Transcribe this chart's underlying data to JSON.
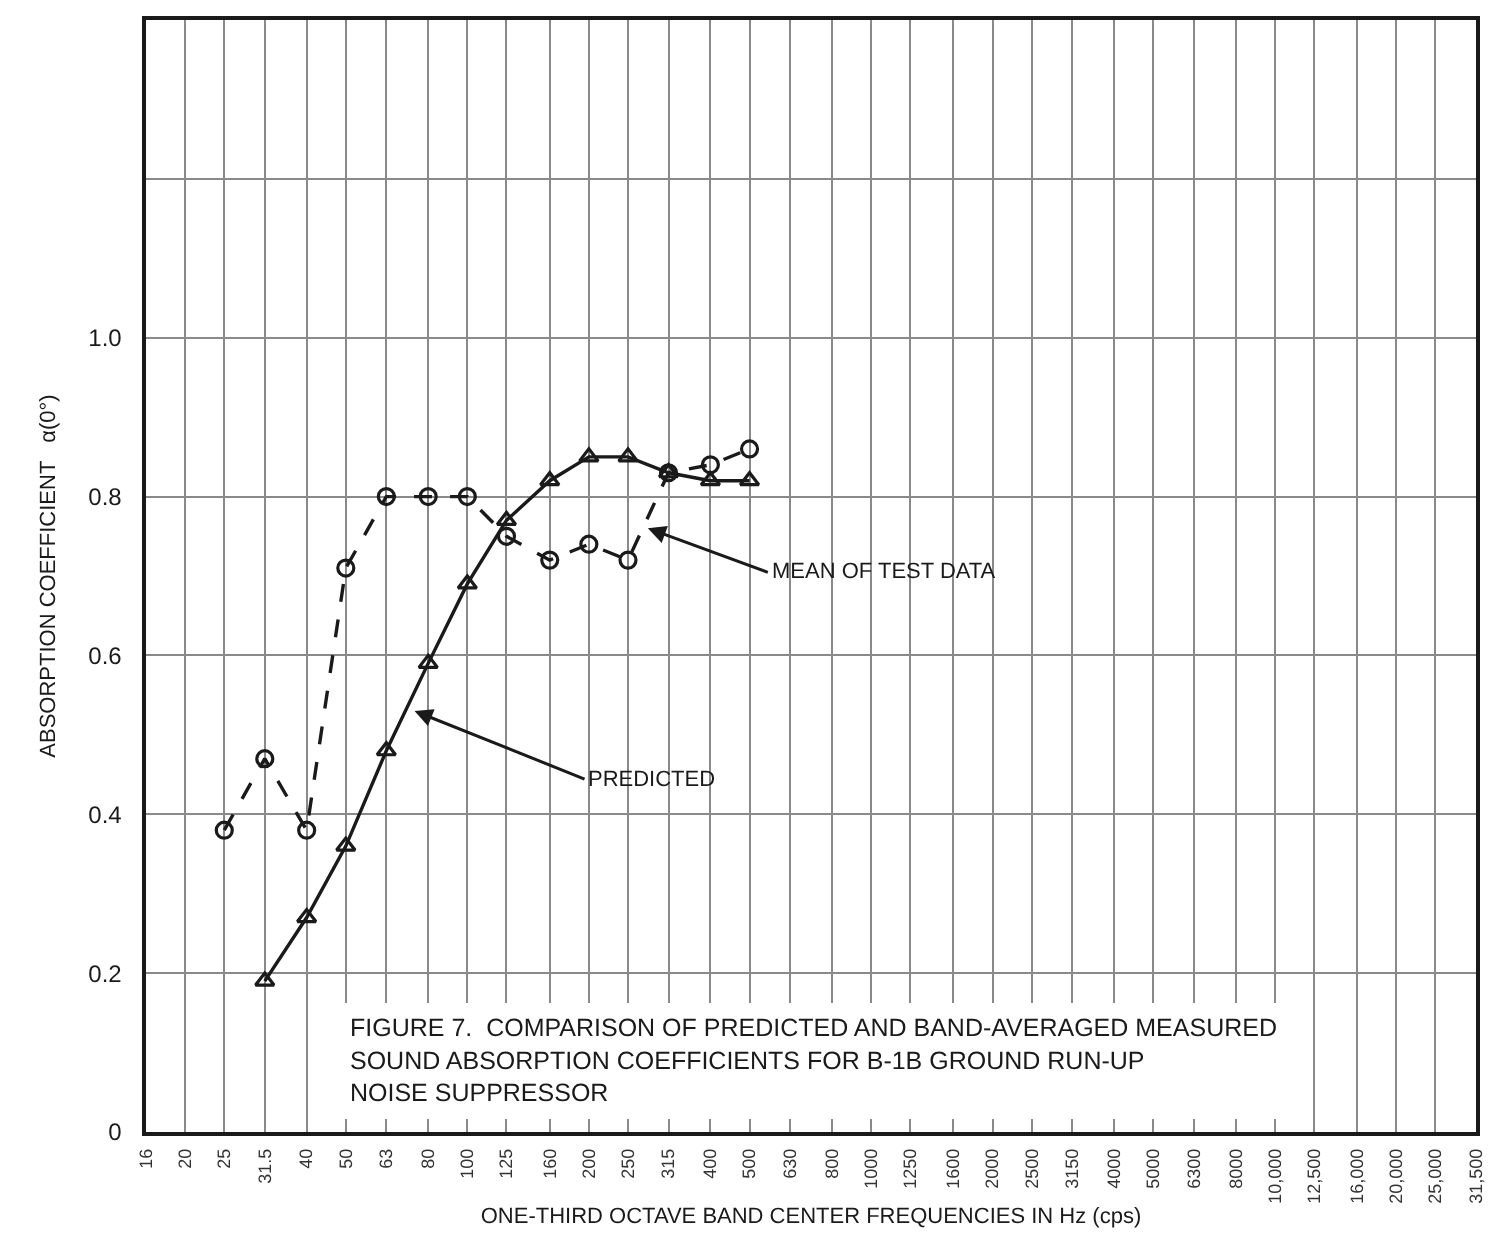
{
  "chart_data": {
    "type": "line",
    "title": "FIGURE 7.  COMPARISON OF PREDICTED AND BAND-AVERAGED MEASURED\nSOUND ABSORPTION COEFFICIENTS FOR B-1B GROUND RUN-UP\nNOISE SUPPRESSOR",
    "xlabel": "ONE-THIRD OCTAVE BAND CENTER FREQUENCIES IN Hz (cps)",
    "ylabel": "ABSORPTION COEFFICIENT   α(0°)",
    "series": [
      {
        "color": "#1a1a1a",
        "line_style": "dashed",
        "marker": "circle",
        "x": [
          25,
          31.5,
          40,
          50,
          63,
          80,
          100,
          125,
          160,
          200,
          250,
          315,
          400,
          500
        ],
        "values": [
          0.38,
          0.47,
          0.38,
          0.71,
          0.8,
          0.8,
          0.8,
          0.75,
          0.72,
          0.74,
          0.72,
          0.83,
          0.84,
          0.86
        ]
      },
      {
        "color": "#1a1a1a",
        "line_style": "solid",
        "marker": "triangle",
        "x": [
          31.5,
          40,
          50,
          63,
          80,
          100,
          125,
          160,
          200,
          250,
          315,
          400,
          500
        ],
        "values": [
          0.19,
          0.27,
          0.36,
          0.48,
          0.59,
          0.69,
          0.77,
          0.82,
          0.85,
          0.85,
          0.83,
          0.82,
          0.82
        ]
      }
    ],
    "annotations": [
      {
        "text": "MEAN OF TEST DATA",
        "x": 280,
        "y": 0.76
      },
      {
        "text": "PREDICTED",
        "x": 74,
        "y": 0.53
      }
    ],
    "log": "x",
    "xlim": [
      16,
      31500
    ],
    "xticks": [
      16,
      20,
      25,
      31.5,
      40,
      50,
      63,
      80,
      100,
      125,
      160,
      200,
      250,
      315,
      400,
      500,
      630,
      800,
      1000,
      1250,
      1600,
      2000,
      2500,
      3150,
      4000,
      5000,
      6300,
      8000,
      {
        "value": 10000,
        "label": "10,000"
      },
      {
        "value": 12500,
        "label": "12,500"
      },
      {
        "value": 16000,
        "label": "16,000"
      },
      {
        "value": 20000,
        "label": "20,000"
      },
      {
        "value": 25000,
        "label": "25,000"
      },
      {
        "value": 31500,
        "label": "31,500"
      }
    ],
    "ylim": [
      0,
      1.4
    ],
    "yticks": [
      0,
      0.2,
      0.4,
      0.6,
      0.8,
      {
        "value": 1,
        "label": "1.0"
      },
      {
        "value": 1.2,
        "label": null
      }
    ],
    "grid": true
  }
}
